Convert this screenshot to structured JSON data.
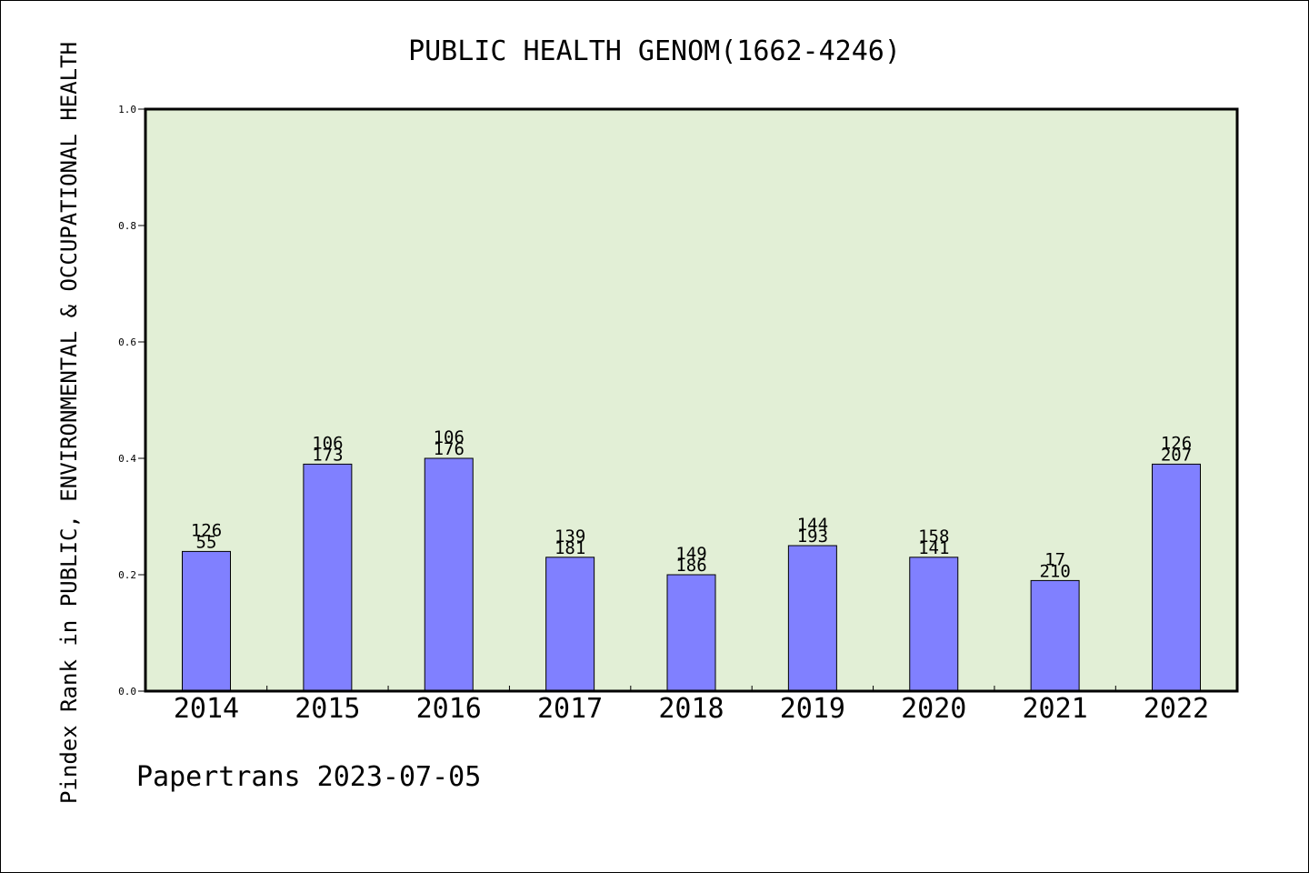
{
  "chart_data": {
    "type": "bar",
    "title": "PUBLIC HEALTH GENOM(1662-4246)",
    "xlabel": "",
    "ylabel": "Pindex Rank in PUBLIC, ENVIRONMENTAL & OCCUPATIONAL HEALTH",
    "categories": [
      "2014",
      "2015",
      "2016",
      "2017",
      "2018",
      "2019",
      "2020",
      "2021",
      "2022"
    ],
    "values": [
      0.24,
      0.39,
      0.4,
      0.23,
      0.2,
      0.25,
      0.23,
      0.19,
      0.39
    ],
    "bar_labels": [
      [
        "126",
        "55"
      ],
      [
        "106",
        "173"
      ],
      [
        "106",
        "176"
      ],
      [
        "139",
        "181"
      ],
      [
        "149",
        "186"
      ],
      [
        "144",
        "193"
      ],
      [
        "158",
        "141"
      ],
      [
        "17",
        "210"
      ],
      [
        "126",
        "207"
      ]
    ],
    "ylim": [
      0,
      1.0
    ],
    "yticks": [
      "0.0",
      "0.2",
      "0.4",
      "0.6",
      "0.8",
      "1.0"
    ],
    "grid": false,
    "colors": {
      "plot_background": "#e2efd6",
      "bar_fill": "#8080ff",
      "bar_stroke": "#000000"
    }
  },
  "footer": "Papertrans 2023-07-05"
}
